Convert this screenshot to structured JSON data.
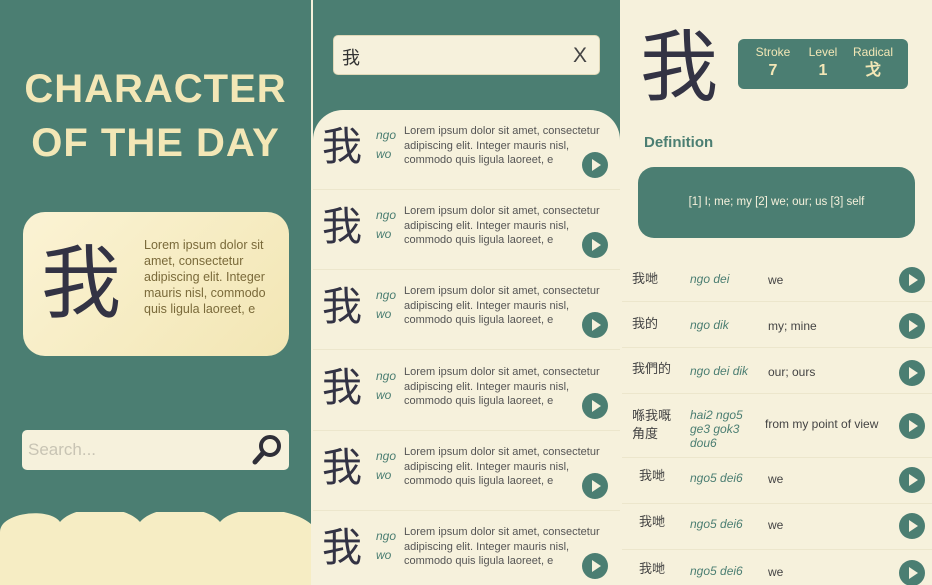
{
  "panel1": {
    "title_line1": "CHARACTER",
    "title_line2": "OF THE DAY",
    "character": "我",
    "description": "Lorem ipsum dolor sit amet, consectetur adipiscing elit. Integer mauris nisl, commodo quis ligula laoreet, e",
    "search_placeholder": "Search..."
  },
  "panel2": {
    "search_value": "我",
    "clear_label": "X",
    "results": [
      {
        "char": "我",
        "pinyin1": "ngo",
        "pinyin2": "wo",
        "text": "Lorem ipsum dolor sit amet, consectetur adipiscing elit. Integer mauris nisl, commodo quis ligula laoreet, e"
      },
      {
        "char": "我",
        "pinyin1": "ngo",
        "pinyin2": "wo",
        "text": "Lorem ipsum dolor sit amet, consectetur adipiscing elit. Integer mauris nisl, commodo quis ligula laoreet, e"
      },
      {
        "char": "我",
        "pinyin1": "ngo",
        "pinyin2": "wo",
        "text": "Lorem ipsum dolor sit amet, consectetur adipiscing elit. Integer mauris nisl, commodo quis ligula laoreet, e"
      },
      {
        "char": "我",
        "pinyin1": "ngo",
        "pinyin2": "wo",
        "text": "Lorem ipsum dolor sit amet, consectetur adipiscing elit. Integer mauris nisl, commodo quis ligula laoreet, e"
      },
      {
        "char": "我",
        "pinyin1": "ngo",
        "pinyin2": "wo",
        "text": "Lorem ipsum dolor sit amet, consectetur adipiscing elit. Integer mauris nisl, commodo quis ligula laoreet, e"
      },
      {
        "char": "我",
        "pinyin1": "ngo",
        "pinyin2": "wo",
        "text": "Lorem ipsum dolor sit amet, consectetur adipiscing elit. Integer mauris nisl, commodo quis ligula laoreet, e"
      }
    ]
  },
  "panel3": {
    "character": "我",
    "stats": {
      "stroke_label": "Stroke",
      "stroke_value": "7",
      "level_label": "Level",
      "level_value": "1",
      "radical_label": "Radical",
      "radical_value": "戈"
    },
    "definition_title": "Definition",
    "definition": "[1] I; me; my [2] we; our; us [3] self",
    "words": [
      {
        "word": "我哋",
        "pron": "ngo dei",
        "meaning": "we"
      },
      {
        "word": "我的",
        "pron": "ngo dik",
        "meaning": "my; mine"
      },
      {
        "word": "我們的",
        "pron": "ngo dei dik",
        "meaning": "our; ours"
      },
      {
        "word": "喺我嘅角度",
        "pron": "hai2 ngo5 ge3 gok3 dou6",
        "meaning": "from my point of view"
      },
      {
        "word": "我哋",
        "pron": "ngo5 dei6",
        "meaning": "we"
      },
      {
        "word": "我哋",
        "pron": "ngo5 dei6",
        "meaning": "we"
      },
      {
        "word": "我哋",
        "pron": "ngo5 dei6",
        "meaning": "we"
      }
    ]
  },
  "colors": {
    "primary": "#4b7e72",
    "cream": "#f6f1dc",
    "title": "#f3e7b6"
  }
}
